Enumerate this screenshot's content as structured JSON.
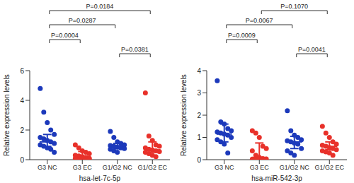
{
  "chart_data": [
    {
      "type": "scatter",
      "marker": "circle",
      "grid": false,
      "x_label": "hsa-let-7c-5p",
      "y_label": "Relative expression levels",
      "categories": [
        "G3 NC",
        "G3 EC",
        "G1/G2 NC",
        "G1/G2 EC"
      ],
      "colors": [
        "#1c39bb",
        "#e8312a",
        "#1c39bb",
        "#e8312a"
      ],
      "points": [
        [
          4.8,
          3.2,
          2.5,
          2.0,
          1.7,
          1.5,
          1.4,
          1.3,
          1.2,
          1.1,
          1.0,
          0.9,
          0.8,
          0.7,
          0.5
        ],
        [
          1.0,
          0.8,
          0.6,
          0.5,
          0.4,
          0.3,
          0.25,
          0.2,
          0.15,
          0.1,
          0.08,
          0.05,
          0.03,
          0.02,
          0.01
        ],
        [
          1.9,
          1.5,
          1.2,
          1.1,
          1.0,
          0.95,
          0.9,
          0.85,
          0.8,
          0.75,
          0.7,
          0.6,
          0.5
        ],
        [
          4.5,
          1.6,
          1.3,
          1.0,
          0.9,
          0.8,
          0.7,
          0.65,
          0.6,
          0.55,
          0.5,
          0.4,
          0.3,
          0.2
        ]
      ],
      "center": [
        1.2,
        0.2,
        0.9,
        0.65
      ],
      "error_low": [
        0.9,
        0.05,
        0.75,
        0.5
      ],
      "error_high": [
        1.7,
        0.55,
        1.1,
        1.2
      ],
      "ylim": [
        0,
        6
      ],
      "yticks": [
        0,
        2,
        4,
        6
      ],
      "comparisons": [
        {
          "from": "G1/G2 NC",
          "to": "G1/G2 EC",
          "label": "P=0.0381"
        },
        {
          "from": "G3 NC",
          "to": "G3 EC",
          "label": "P=0.0004"
        },
        {
          "from": "G3 NC",
          "to": "G1/G2 NC",
          "label": "P=0.0287"
        },
        {
          "from": "G3 NC",
          "to": "G1/G2 EC",
          "label": "P=0.0184"
        }
      ]
    },
    {
      "type": "scatter",
      "marker": "circle",
      "grid": false,
      "x_label": "hsa-miR-542-3p",
      "y_label": "Relative expression levels",
      "categories": [
        "G3 NC",
        "G3 EC",
        "G1/G2 NC",
        "G1/G2 EC"
      ],
      "colors": [
        "#1c39bb",
        "#e8312a",
        "#1c39bb",
        "#e8312a"
      ],
      "points": [
        [
          3.55,
          1.7,
          1.6,
          1.4,
          1.3,
          1.25,
          1.2,
          1.15,
          1.1,
          1.0,
          0.9,
          0.8,
          0.7,
          0.3
        ],
        [
          1.3,
          1.2,
          1.0,
          0.6,
          0.5,
          0.4,
          0.2,
          0.1,
          0.05,
          0.03,
          0.02,
          0.01
        ],
        [
          2.2,
          1.3,
          1.1,
          1.0,
          0.9,
          0.85,
          0.8,
          0.75,
          0.7,
          0.5,
          0.4,
          0.3,
          0.2
        ],
        [
          1.5,
          1.2,
          1.0,
          0.8,
          0.7,
          0.65,
          0.6,
          0.55,
          0.5,
          0.45,
          0.4,
          0.35,
          0.3,
          0.2
        ]
      ],
      "center": [
        1.15,
        0.1,
        0.8,
        0.6
      ],
      "error_low": [
        0.8,
        0.05,
        0.5,
        0.45
      ],
      "error_high": [
        1.6,
        0.75,
        1.05,
        0.8
      ],
      "ylim": [
        0,
        4
      ],
      "yticks": [
        0,
        1,
        2,
        3,
        4
      ],
      "comparisons": [
        {
          "from": "G1/G2 NC",
          "to": "G1/G2 EC",
          "label": "P=0.0041"
        },
        {
          "from": "G3 NC",
          "to": "G3 EC",
          "label": "P=0.0009"
        },
        {
          "from": "G3 NC",
          "to": "G1/G2 NC",
          "label": "P=0.0067"
        },
        {
          "from": "G3 EC",
          "to": "G1/G2 EC",
          "label": "P=0.1070"
        }
      ]
    }
  ]
}
